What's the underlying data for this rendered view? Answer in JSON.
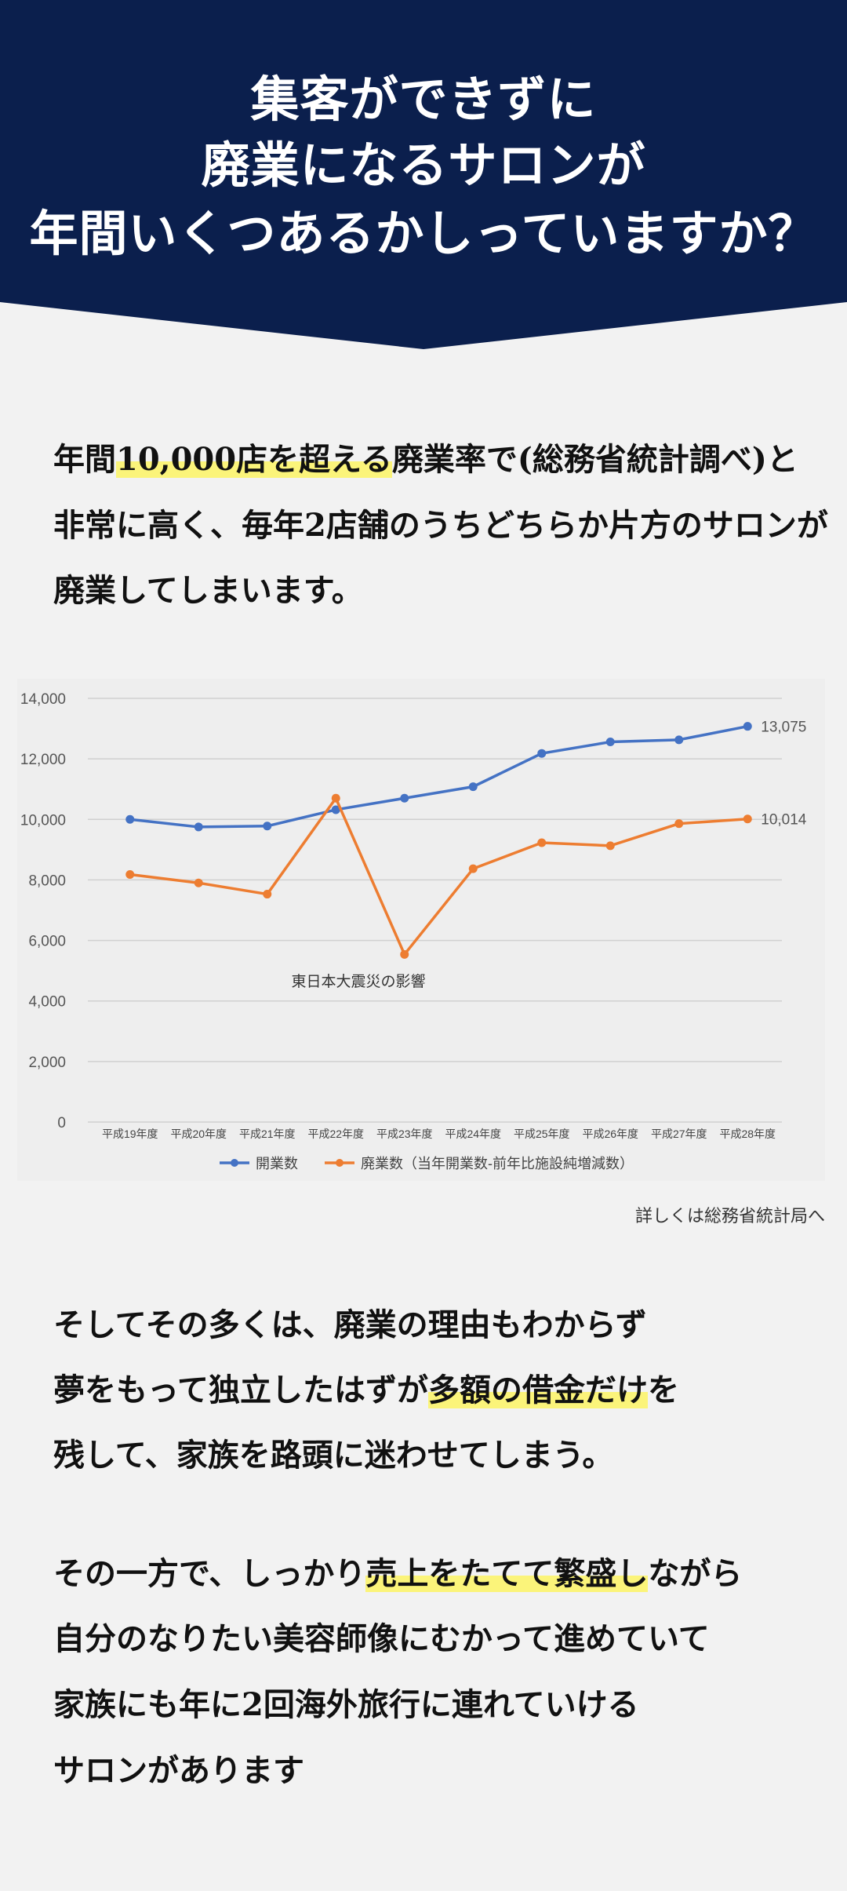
{
  "header": {
    "line1": "集客ができずに",
    "line2": "廃業になるサロンが",
    "line3": "年間いくつあるかしっていますか？"
  },
  "intro": {
    "line1_pre": "年間",
    "line1_hl": "10,000店を超える",
    "line1_post": "廃業率で(総務省統計調べ)と",
    "line2": "非常に高く、毎年2店舗のうちどちらか片方のサロンが",
    "line3": "廃業してしまいます。"
  },
  "chart_data": {
    "type": "line",
    "categories": [
      "平成19年度",
      "平成20年度",
      "平成21年度",
      "平成22年度",
      "平成23年度",
      "平成24年度",
      "平成25年度",
      "平成26年度",
      "平成27年度",
      "平成28年度"
    ],
    "series": [
      {
        "name": "開業数",
        "color": "#4472c4",
        "values": [
          10000,
          9750,
          9780,
          10320,
          10700,
          11080,
          12180,
          12560,
          12630,
          13075
        ]
      },
      {
        "name": "廃業数（当年開業数-前年比施設純増減数）",
        "color": "#ed7d31",
        "values": [
          8180,
          7900,
          7530,
          10700,
          5540,
          8370,
          9230,
          9130,
          9860,
          10014
        ]
      }
    ],
    "end_labels": [
      "13,075",
      "10,014"
    ],
    "annotation": "東日本大震災の影響",
    "ylim": [
      0,
      14000
    ],
    "yticks": [
      0,
      2000,
      4000,
      6000,
      8000,
      10000,
      12000,
      14000
    ],
    "ytick_labels": [
      "0",
      "2,000",
      "4,000",
      "6,000",
      "8,000",
      "10,000",
      "12,000",
      "14,000"
    ],
    "grid": true,
    "legend": "bottom"
  },
  "source_link": "詳しくは総務省統計局へ",
  "body2": {
    "line1": "そしてその多くは、廃業の理由もわからず",
    "line2_pre": "夢をもって独立したはずが",
    "line2_hl": "多額の借金だけ",
    "line2_post": "を",
    "line3": "残して、家族を路頭に迷わせてしまう。"
  },
  "body3": {
    "line1_pre": "その一方で、しっかり",
    "line1_hl": "売上をたてて繁盛し",
    "line1_post": "ながら",
    "line2": "自分のなりたい美容師像にむかって進めていて",
    "line3": "家族にも年に2回海外旅行に連れていける",
    "line4": "サロンがあります"
  }
}
